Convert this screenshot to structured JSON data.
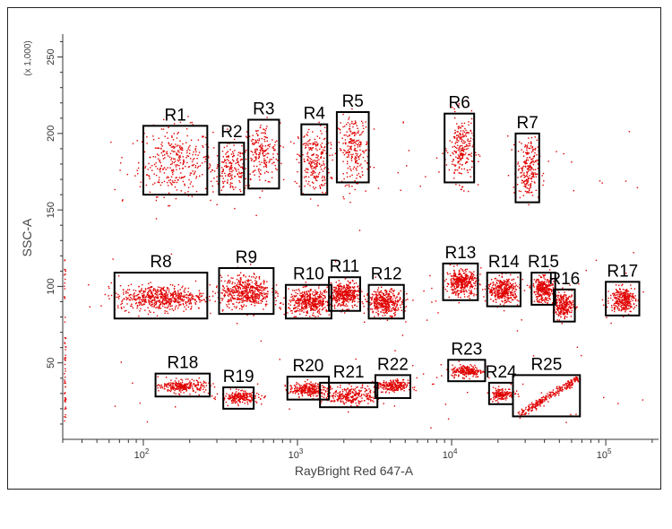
{
  "chart_data": {
    "type": "scatter",
    "xlabel": "RayBright Red 647-A",
    "ylabel": "SSC-A",
    "y_multiplier": "(x 1,000)",
    "x_scale": "log",
    "x_ticks": [
      {
        "base": "10",
        "exp": "2"
      },
      {
        "base": "10",
        "exp": "3"
      },
      {
        "base": "10",
        "exp": "4"
      },
      {
        "base": "10",
        "exp": "5"
      }
    ],
    "y_ticks": [
      "50",
      "100",
      "150",
      "200",
      "250"
    ],
    "xlim": [
      30,
      220000
    ],
    "ylim": [
      0,
      265
    ],
    "point_color": "#e00000",
    "gate_color": "#000000",
    "gates": [
      {
        "name": "R1",
        "x": [
          100,
          260
        ],
        "y": [
          160,
          205
        ]
      },
      {
        "name": "R2",
        "x": [
          310,
          450
        ],
        "y": [
          160,
          194
        ]
      },
      {
        "name": "R3",
        "x": [
          480,
          760
        ],
        "y": [
          164,
          209
        ]
      },
      {
        "name": "R4",
        "x": [
          1060,
          1560
        ],
        "y": [
          160,
          206
        ]
      },
      {
        "name": "R5",
        "x": [
          1800,
          2900
        ],
        "y": [
          168,
          214
        ]
      },
      {
        "name": "R6",
        "x": [
          9000,
          14000
        ],
        "y": [
          168,
          213
        ]
      },
      {
        "name": "R7",
        "x": [
          26000,
          37000
        ],
        "y": [
          155,
          200
        ]
      },
      {
        "name": "R8",
        "x": [
          65,
          260
        ],
        "y": [
          79,
          109
        ]
      },
      {
        "name": "R9",
        "x": [
          310,
          700
        ],
        "y": [
          82,
          112
        ]
      },
      {
        "name": "R10",
        "x": [
          840,
          1660
        ],
        "y": [
          79,
          101
        ]
      },
      {
        "name": "R11",
        "x": [
          1600,
          2550
        ],
        "y": [
          84,
          106
        ]
      },
      {
        "name": "R12",
        "x": [
          2900,
          4900
        ],
        "y": [
          79,
          101
        ]
      },
      {
        "name": "R13",
        "x": [
          8800,
          14800
        ],
        "y": [
          91,
          115
        ]
      },
      {
        "name": "R14",
        "x": [
          17000,
          28000
        ],
        "y": [
          87,
          109
        ]
      },
      {
        "name": "R15",
        "x": [
          33000,
          47000
        ],
        "y": [
          88,
          109
        ]
      },
      {
        "name": "R16",
        "x": [
          46000,
          63000
        ],
        "y": [
          77,
          98
        ]
      },
      {
        "name": "R17",
        "x": [
          100000,
          165000
        ],
        "y": [
          81,
          103
        ]
      },
      {
        "name": "R18",
        "x": [
          120,
          270
        ],
        "y": [
          28,
          43
        ]
      },
      {
        "name": "R19",
        "x": [
          330,
          520
        ],
        "y": [
          20,
          34
        ]
      },
      {
        "name": "R20",
        "x": [
          860,
          1600
        ],
        "y": [
          26,
          41
        ]
      },
      {
        "name": "R21",
        "x": [
          1400,
          3300
        ],
        "y": [
          21,
          37
        ]
      },
      {
        "name": "R22",
        "x": [
          3200,
          5400
        ],
        "y": [
          27,
          42
        ]
      },
      {
        "name": "R23",
        "x": [
          9500,
          16500
        ],
        "y": [
          38,
          52
        ]
      },
      {
        "name": "R24",
        "x": [
          17500,
          25000
        ],
        "y": [
          23,
          37
        ]
      },
      {
        "name": "R25",
        "x": [
          25000,
          68000
        ],
        "y": [
          15,
          42
        ]
      }
    ],
    "clusters": [
      {
        "gate": "R1",
        "center": [
          160,
          182
        ],
        "spread": [
          0.12,
          11
        ],
        "count": 320
      },
      {
        "gate": "R2",
        "center": [
          370,
          177
        ],
        "spread": [
          0.06,
          8
        ],
        "count": 170
      },
      {
        "gate": "R3",
        "center": [
          580,
          187
        ],
        "spread": [
          0.06,
          10
        ],
        "count": 200
      },
      {
        "gate": "R4",
        "center": [
          1270,
          182
        ],
        "spread": [
          0.05,
          11
        ],
        "count": 240
      },
      {
        "gate": "R5",
        "center": [
          2300,
          190
        ],
        "spread": [
          0.05,
          11
        ],
        "count": 230
      },
      {
        "gate": "R6",
        "center": [
          11500,
          190
        ],
        "spread": [
          0.04,
          11
        ],
        "count": 230
      },
      {
        "gate": "R7",
        "center": [
          31000,
          177
        ],
        "spread": [
          0.035,
          10
        ],
        "count": 220
      },
      {
        "gate": "R8",
        "center": [
          130,
          93
        ],
        "spread": [
          0.14,
          4
        ],
        "count": 600
      },
      {
        "gate": "R9",
        "center": [
          460,
          97
        ],
        "spread": [
          0.08,
          5
        ],
        "count": 500
      },
      {
        "gate": "R10",
        "center": [
          1200,
          90
        ],
        "spread": [
          0.07,
          4
        ],
        "count": 450
      },
      {
        "gate": "R11",
        "center": [
          2000,
          95
        ],
        "spread": [
          0.05,
          4
        ],
        "count": 380
      },
      {
        "gate": "R12",
        "center": [
          3700,
          90
        ],
        "spread": [
          0.055,
          4
        ],
        "count": 380
      },
      {
        "gate": "R13",
        "center": [
          11500,
          103
        ],
        "spread": [
          0.05,
          4
        ],
        "count": 380
      },
      {
        "gate": "R14",
        "center": [
          21500,
          98
        ],
        "spread": [
          0.05,
          4
        ],
        "count": 380
      },
      {
        "gate": "R15",
        "center": [
          39000,
          98
        ],
        "spread": [
          0.035,
          4
        ],
        "count": 320
      },
      {
        "gate": "R16",
        "center": [
          53000,
          88
        ],
        "spread": [
          0.035,
          4
        ],
        "count": 260
      },
      {
        "gate": "R17",
        "center": [
          128000,
          92
        ],
        "spread": [
          0.04,
          4
        ],
        "count": 300
      },
      {
        "gate": "R18",
        "center": [
          180,
          35
        ],
        "spread": [
          0.07,
          2
        ],
        "count": 260
      },
      {
        "gate": "R19",
        "center": [
          420,
          28
        ],
        "spread": [
          0.06,
          2
        ],
        "count": 220
      },
      {
        "gate": "R20",
        "center": [
          1150,
          33
        ],
        "spread": [
          0.06,
          2
        ],
        "count": 250
      },
      {
        "gate": "R21",
        "center": [
          2200,
          29
        ],
        "spread": [
          0.09,
          3
        ],
        "count": 300
      },
      {
        "gate": "R22",
        "center": [
          4100,
          35
        ],
        "spread": [
          0.05,
          2
        ],
        "count": 230
      },
      {
        "gate": "R23",
        "center": [
          12500,
          45
        ],
        "spread": [
          0.05,
          2
        ],
        "count": 220
      },
      {
        "gate": "R24",
        "center": [
          21000,
          30
        ],
        "spread": [
          0.04,
          2
        ],
        "count": 160
      }
    ]
  }
}
